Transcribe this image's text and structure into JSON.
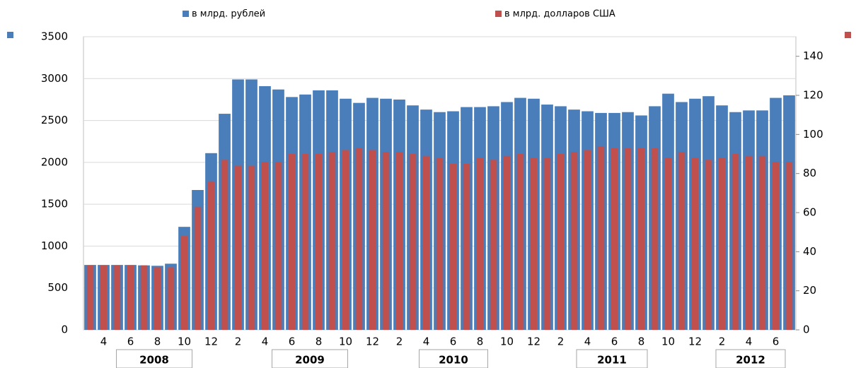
{
  "chart_data": {
    "type": "bar",
    "categories": [
      null,
      "4",
      null,
      "6",
      null,
      "8",
      null,
      "10",
      null,
      "12",
      null,
      "2",
      null,
      "4",
      null,
      "6",
      null,
      "8",
      null,
      "10",
      null,
      "12",
      null,
      "2",
      null,
      "4",
      null,
      "6",
      null,
      "8",
      null,
      "10",
      null,
      "12",
      null,
      "2",
      null,
      "4",
      null,
      "6",
      null,
      "8",
      null,
      "10",
      null,
      "12",
      null,
      "2",
      null,
      "4",
      null,
      "6",
      null
    ],
    "groups": [
      {
        "label": "2008",
        "start": 0,
        "count": 10
      },
      {
        "label": "2009",
        "start": 10,
        "count": 12
      },
      {
        "label": "2010",
        "start": 22,
        "count": 12
      },
      {
        "label": "2011",
        "start": 34,
        "count": 12
      },
      {
        "label": "2012",
        "start": 46,
        "count": 7
      }
    ],
    "series": [
      {
        "name": "в млрд. рублей",
        "color": "#4a7ebb",
        "values": [
          775,
          775,
          775,
          775,
          770,
          765,
          790,
          1230,
          1670,
          2110,
          2580,
          2990,
          2990,
          2910,
          2870,
          2780,
          2810,
          2860,
          2860,
          2760,
          2710,
          2770,
          2760,
          2750,
          2680,
          2630,
          2600,
          2610,
          2660,
          2660,
          2670,
          2720,
          2770,
          2760,
          2690,
          2670,
          2630,
          2610,
          2590,
          2590,
          2600,
          2560,
          2670,
          2820,
          2720,
          2760,
          2790,
          2680,
          2600,
          2620,
          2620,
          2770,
          2800
        ]
      },
      {
        "name": "в млрд. долларов США",
        "color": "#c0504d",
        "axis": "y2",
        "values": [
          33,
          33,
          33,
          33,
          33,
          32,
          32,
          48,
          63,
          76,
          87,
          84,
          84,
          86,
          86,
          90,
          90,
          90,
          91,
          92,
          93,
          92,
          91,
          91,
          90,
          89,
          88,
          85,
          85,
          88,
          87,
          89,
          90,
          88,
          88,
          90,
          91,
          92,
          94,
          93,
          93,
          93,
          93,
          88,
          91,
          88,
          87,
          88,
          90,
          89,
          89,
          86,
          86
        ]
      }
    ],
    "ylim": [
      0,
      3500
    ],
    "yticks": [
      0,
      500,
      1000,
      1500,
      2000,
      2500,
      3000,
      3500
    ],
    "y2lim": [
      0,
      150
    ],
    "y2ticks": [
      0,
      20,
      40,
      60,
      80,
      100,
      120,
      140
    ],
    "grid": true
  }
}
